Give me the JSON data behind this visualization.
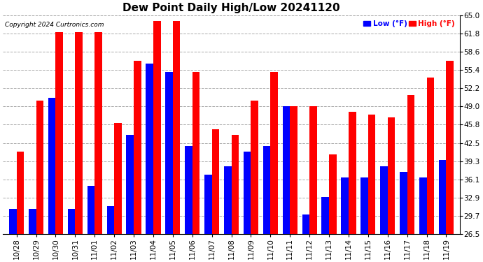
{
  "title": "Dew Point Daily High/Low 20241120",
  "copyright": "Copyright 2024 Curtronics.com",
  "legend_low": "Low (°F)",
  "legend_high": "High (°F)",
  "categories": [
    "10/28",
    "10/29",
    "10/30",
    "10/31",
    "11/01",
    "11/02",
    "11/03",
    "11/04",
    "11/05",
    "11/06",
    "11/07",
    "11/08",
    "11/09",
    "11/10",
    "11/11",
    "11/12",
    "11/13",
    "11/14",
    "11/15",
    "11/16",
    "11/17",
    "11/18",
    "11/19"
  ],
  "high_values": [
    41.0,
    50.0,
    62.0,
    62.0,
    62.0,
    46.0,
    57.0,
    64.0,
    64.0,
    55.0,
    45.0,
    44.0,
    50.0,
    55.0,
    49.0,
    49.0,
    40.5,
    48.0,
    47.5,
    47.0,
    51.0,
    54.0,
    57.0
  ],
  "low_values": [
    31.0,
    31.0,
    50.5,
    31.0,
    35.0,
    31.5,
    44.0,
    56.5,
    55.0,
    42.0,
    37.0,
    38.5,
    41.0,
    42.0,
    49.0,
    30.0,
    33.0,
    36.5,
    36.5,
    38.5,
    37.5,
    36.5,
    39.5
  ],
  "bar_color_high": "#ff0000",
  "bar_color_low": "#0000ff",
  "ylim_min": 26.5,
  "ylim_max": 65.0,
  "yticks": [
    26.5,
    29.7,
    32.9,
    36.1,
    39.3,
    42.5,
    45.8,
    49.0,
    52.2,
    55.4,
    58.6,
    61.8,
    65.0
  ],
  "background_color": "#ffffff",
  "grid_color": "#aaaaaa",
  "title_fontsize": 11,
  "tick_fontsize": 7.5
}
